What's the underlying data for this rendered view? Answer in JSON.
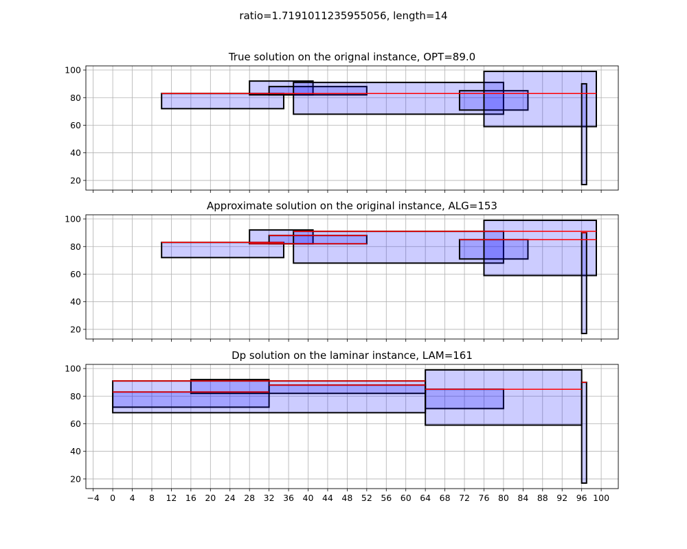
{
  "suptitle": "ratio=1.7191011235955056, length=14",
  "chart_data": [
    {
      "type": "rectangles",
      "title": "True solution on the orignal instance, OPT=89.0",
      "xlim": [
        -5.5,
        103.5
      ],
      "ylim": [
        13,
        103
      ],
      "grid": true,
      "xticks": [
        -4,
        0,
        4,
        8,
        12,
        16,
        20,
        24,
        28,
        32,
        36,
        40,
        44,
        48,
        52,
        56,
        60,
        64,
        68,
        72,
        76,
        80,
        84,
        88,
        92,
        96,
        100
      ],
      "yticks": [
        20,
        40,
        60,
        80,
        100
      ],
      "show_xtick_labels": false,
      "rectangles": [
        {
          "x0": 10,
          "x1": 35,
          "y0": 72,
          "y1": 83
        },
        {
          "x0": 28,
          "x1": 41,
          "y0": 82,
          "y1": 92
        },
        {
          "x0": 32,
          "x1": 52,
          "y0": 82,
          "y1": 88
        },
        {
          "x0": 37,
          "x1": 80,
          "y0": 68,
          "y1": 91
        },
        {
          "x0": 71,
          "x1": 85,
          "y0": 71,
          "y1": 85
        },
        {
          "x0": 76,
          "x1": 99,
          "y0": 59,
          "y1": 99
        },
        {
          "x0": 96,
          "x1": 97,
          "y0": 17,
          "y1": 90
        }
      ],
      "red_lines": [
        {
          "x0": 10,
          "x1": 99,
          "y": 83
        }
      ]
    },
    {
      "type": "rectangles",
      "title": "Approximate solution on the original instance, ALG=153",
      "xlim": [
        -5.5,
        103.5
      ],
      "ylim": [
        13,
        103
      ],
      "grid": true,
      "xticks": [
        -4,
        0,
        4,
        8,
        12,
        16,
        20,
        24,
        28,
        32,
        36,
        40,
        44,
        48,
        52,
        56,
        60,
        64,
        68,
        72,
        76,
        80,
        84,
        88,
        92,
        96,
        100
      ],
      "yticks": [
        20,
        40,
        60,
        80,
        100
      ],
      "show_xtick_labels": false,
      "rectangles": [
        {
          "x0": 10,
          "x1": 35,
          "y0": 72,
          "y1": 83
        },
        {
          "x0": 28,
          "x1": 41,
          "y0": 82,
          "y1": 92
        },
        {
          "x0": 32,
          "x1": 52,
          "y0": 82,
          "y1": 88
        },
        {
          "x0": 37,
          "x1": 80,
          "y0": 68,
          "y1": 91
        },
        {
          "x0": 71,
          "x1": 85,
          "y0": 71,
          "y1": 85
        },
        {
          "x0": 76,
          "x1": 99,
          "y0": 59,
          "y1": 99
        },
        {
          "x0": 96,
          "x1": 97,
          "y0": 17,
          "y1": 90
        }
      ],
      "red_lines": [
        {
          "x0": 10,
          "x1": 35,
          "y": 83
        },
        {
          "x0": 28,
          "x1": 52,
          "y": 82
        },
        {
          "x0": 32,
          "x1": 52,
          "y": 88
        },
        {
          "x0": 37,
          "x1": 99,
          "y": 91
        },
        {
          "x0": 71,
          "x1": 99,
          "y": 85
        },
        {
          "x0": 96,
          "x1": 97,
          "y": 90
        }
      ]
    },
    {
      "type": "rectangles",
      "title": "Dp solution on the laminar instance, LAM=161",
      "xlim": [
        -5.5,
        103.5
      ],
      "ylim": [
        13,
        103
      ],
      "grid": true,
      "xticks": [
        -4,
        0,
        4,
        8,
        12,
        16,
        20,
        24,
        28,
        32,
        36,
        40,
        44,
        48,
        52,
        56,
        60,
        64,
        68,
        72,
        76,
        80,
        84,
        88,
        92,
        96,
        100
      ],
      "yticks": [
        20,
        40,
        60,
        80,
        100
      ],
      "show_xtick_labels": true,
      "rectangles": [
        {
          "x0": 0,
          "x1": 32,
          "y0": 72,
          "y1": 83
        },
        {
          "x0": 16,
          "x1": 32,
          "y0": 82,
          "y1": 92
        },
        {
          "x0": 32,
          "x1": 64,
          "y0": 82,
          "y1": 88
        },
        {
          "x0": 0,
          "x1": 64,
          "y0": 68,
          "y1": 91
        },
        {
          "x0": 64,
          "x1": 80,
          "y0": 71,
          "y1": 85
        },
        {
          "x0": 64,
          "x1": 96,
          "y0": 59,
          "y1": 99
        },
        {
          "x0": 96,
          "x1": 97,
          "y0": 17,
          "y1": 90
        }
      ],
      "red_lines": [
        {
          "x0": 0,
          "x1": 64,
          "y": 91
        },
        {
          "x0": 0,
          "x1": 32,
          "y": 83
        },
        {
          "x0": 32,
          "x1": 64,
          "y": 88
        },
        {
          "x0": 64,
          "x1": 96,
          "y": 85
        },
        {
          "x0": 96,
          "x1": 97,
          "y": 90
        }
      ]
    }
  ]
}
